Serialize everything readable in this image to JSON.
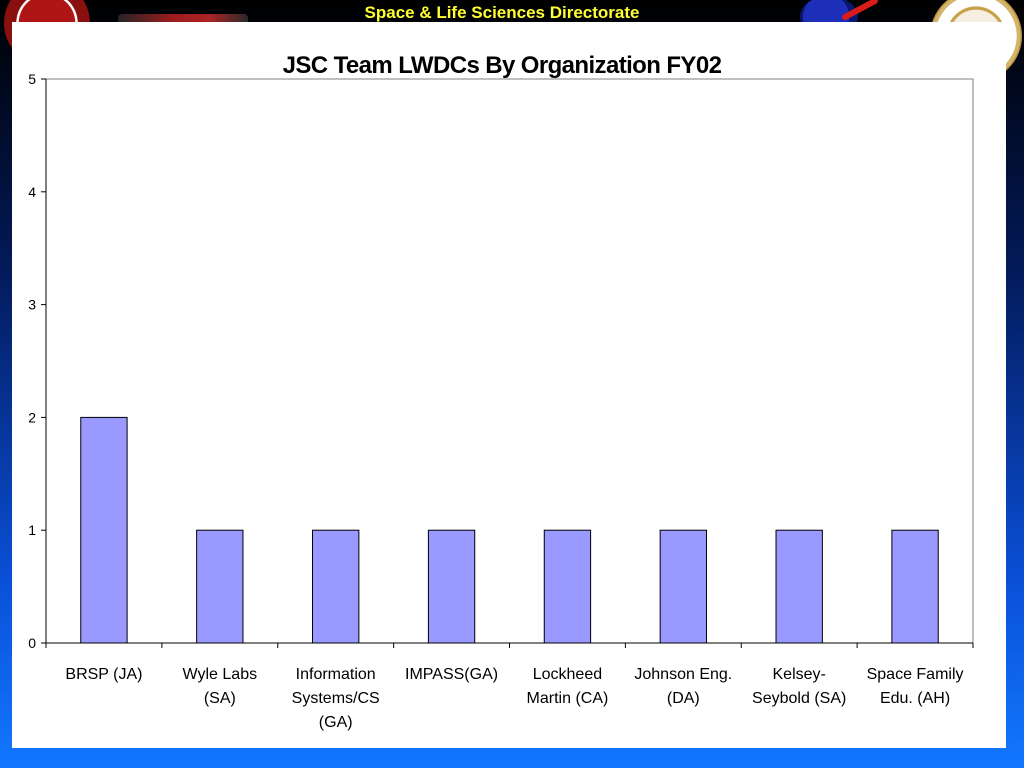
{
  "header": {
    "title": "Space & Life Sciences Directorate"
  },
  "logos": {
    "left_emblem_icon": "mission-emblem-icon",
    "nasa_icon": "nasa-meatball-icon",
    "right_seal_icon": "seal-icon"
  },
  "colors": {
    "bar_fill": "#9999ff",
    "bar_stroke": "#000000",
    "header_text": "#ffff33"
  },
  "chart_data": {
    "type": "bar",
    "title": "JSC Team LWDCs By Organization FY02",
    "xlabel": "",
    "ylabel": "",
    "ylim": [
      0,
      5
    ],
    "yticks": [
      0,
      1,
      2,
      3,
      4,
      5
    ],
    "grid": false,
    "categories": [
      [
        "BRSP (JA)"
      ],
      [
        "Wyle Labs",
        "(SA)"
      ],
      [
        "Information",
        "Systems/CS",
        "(GA)"
      ],
      [
        "IMPASS(GA)"
      ],
      [
        "Lockheed",
        "Martin (CA)"
      ],
      [
        "Johnson Eng.",
        "(DA)"
      ],
      [
        "Kelsey-",
        "Seybold (SA)"
      ],
      [
        "Space Family",
        "Edu. (AH)"
      ]
    ],
    "values": [
      2,
      1,
      1,
      1,
      1,
      1,
      1,
      1
    ]
  }
}
